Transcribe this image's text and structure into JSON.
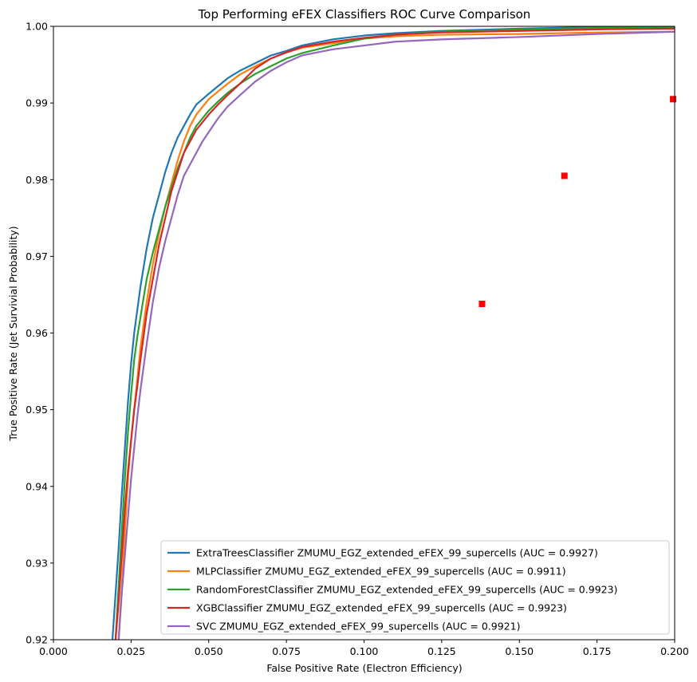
{
  "chart_data": {
    "type": "line",
    "title": "Top Performing eFEX Classifiers ROC Curve Comparison",
    "xlabel": "False Positive Rate (Electron Efficiency)",
    "ylabel": "True Positive Rate (Jet Survivial Probability)",
    "xlim": [
      0.0,
      0.2
    ],
    "ylim": [
      0.92,
      1.0
    ],
    "x_ticks": [
      "0.000",
      "0.025",
      "0.050",
      "0.075",
      "0.100",
      "0.125",
      "0.150",
      "0.175",
      "0.200"
    ],
    "y_ticks": [
      "0.92",
      "0.93",
      "0.94",
      "0.95",
      "0.96",
      "0.97",
      "0.98",
      "0.99",
      "1.00"
    ],
    "grid": false,
    "legend_position": "lower-right",
    "series": [
      {
        "name": "ExtraTreesClassifier ZMUMU_EGZ_extended_eFEX_99_supercells (AUC = 0.9927)",
        "color": "#1f77b4",
        "x": [
          0.019,
          0.02,
          0.021,
          0.022,
          0.023,
          0.024,
          0.025,
          0.026,
          0.027,
          0.028,
          0.03,
          0.032,
          0.034,
          0.036,
          0.038,
          0.04,
          0.042,
          0.044,
          0.046,
          0.048,
          0.05,
          0.053,
          0.056,
          0.06,
          0.065,
          0.07,
          0.075,
          0.08,
          0.09,
          0.1,
          0.11,
          0.125,
          0.15,
          0.175,
          0.2
        ],
        "y": [
          0.92,
          0.926,
          0.932,
          0.939,
          0.945,
          0.951,
          0.956,
          0.96,
          0.963,
          0.966,
          0.971,
          0.975,
          0.978,
          0.981,
          0.9835,
          0.9855,
          0.987,
          0.9885,
          0.9898,
          0.9905,
          0.9912,
          0.9922,
          0.9932,
          0.9942,
          0.9952,
          0.9962,
          0.9968,
          0.9975,
          0.9983,
          0.9988,
          0.9991,
          0.9994,
          0.9997,
          0.9999,
          1.0
        ]
      },
      {
        "name": "MLPClassifier ZMUMU_EGZ_extended_eFEX_99_supercells (AUC = 0.9911)",
        "color": "#ff7f0e",
        "x": [
          0.021,
          0.022,
          0.023,
          0.024,
          0.025,
          0.026,
          0.027,
          0.028,
          0.03,
          0.032,
          0.034,
          0.036,
          0.038,
          0.04,
          0.042,
          0.044,
          0.046,
          0.048,
          0.05,
          0.053,
          0.056,
          0.06,
          0.065,
          0.07,
          0.075,
          0.08,
          0.09,
          0.1,
          0.11,
          0.125,
          0.15,
          0.175,
          0.2
        ],
        "y": [
          0.92,
          0.927,
          0.934,
          0.941,
          0.946,
          0.95,
          0.954,
          0.958,
          0.964,
          0.969,
          0.973,
          0.9765,
          0.9795,
          0.9825,
          0.985,
          0.987,
          0.9885,
          0.9895,
          0.9905,
          0.9915,
          0.9925,
          0.9937,
          0.9948,
          0.9958,
          0.9966,
          0.9972,
          0.9978,
          0.9984,
          0.9987,
          0.9989,
          0.999,
          0.9992,
          0.9993
        ]
      },
      {
        "name": "RandomForestClassifier ZMUMU_EGZ_extended_eFEX_99_supercells (AUC = 0.9923)",
        "color": "#2ca02c",
        "x": [
          0.02,
          0.021,
          0.022,
          0.023,
          0.024,
          0.025,
          0.026,
          0.027,
          0.028,
          0.03,
          0.032,
          0.034,
          0.036,
          0.038,
          0.04,
          0.042,
          0.044,
          0.046,
          0.048,
          0.05,
          0.053,
          0.056,
          0.06,
          0.065,
          0.07,
          0.075,
          0.08,
          0.09,
          0.1,
          0.11,
          0.125,
          0.15,
          0.175,
          0.2
        ],
        "y": [
          0.92,
          0.927,
          0.934,
          0.941,
          0.947,
          0.952,
          0.9565,
          0.9595,
          0.962,
          0.967,
          0.9705,
          0.9735,
          0.9765,
          0.979,
          0.9815,
          0.9835,
          0.9855,
          0.987,
          0.988,
          0.989,
          0.9902,
          0.9913,
          0.9925,
          0.9938,
          0.9948,
          0.9958,
          0.9965,
          0.9975,
          0.9984,
          0.9989,
          0.9993,
          0.9996,
          0.9998,
          0.9999
        ]
      },
      {
        "name": "XGBClassifier ZMUMU_EGZ_extended_eFEX_99_supercells (AUC = 0.9923)",
        "color": "#d62728",
        "x": [
          0.02,
          0.021,
          0.022,
          0.023,
          0.024,
          0.025,
          0.026,
          0.027,
          0.028,
          0.03,
          0.032,
          0.034,
          0.036,
          0.038,
          0.04,
          0.042,
          0.044,
          0.046,
          0.048,
          0.05,
          0.053,
          0.056,
          0.06,
          0.065,
          0.07,
          0.075,
          0.08,
          0.09,
          0.1,
          0.11,
          0.125,
          0.15,
          0.175,
          0.2
        ],
        "y": [
          0.92,
          0.925,
          0.931,
          0.937,
          0.942,
          0.946,
          0.95,
          0.953,
          0.9565,
          0.9625,
          0.967,
          0.9715,
          0.975,
          0.9785,
          0.981,
          0.9835,
          0.985,
          0.9865,
          0.9875,
          0.9885,
          0.9898,
          0.991,
          0.9925,
          0.9945,
          0.9958,
          0.9966,
          0.9973,
          0.998,
          0.9985,
          0.9989,
          0.9992,
          0.9994,
          0.9996,
          0.9997
        ]
      },
      {
        "name": "SVC ZMUMU_EGZ_extended_eFEX_99_supercells (AUC = 0.9921)",
        "color": "#9467bd",
        "x": [
          0.021,
          0.022,
          0.023,
          0.024,
          0.025,
          0.026,
          0.027,
          0.028,
          0.029,
          0.03,
          0.032,
          0.034,
          0.036,
          0.038,
          0.04,
          0.042,
          0.044,
          0.046,
          0.048,
          0.05,
          0.053,
          0.056,
          0.06,
          0.065,
          0.07,
          0.075,
          0.08,
          0.09,
          0.1,
          0.11,
          0.125,
          0.15,
          0.175,
          0.2
        ],
        "y": [
          0.92,
          0.926,
          0.931,
          0.936,
          0.941,
          0.945,
          0.949,
          0.9525,
          0.9555,
          0.9585,
          0.964,
          0.9685,
          0.972,
          0.975,
          0.978,
          0.9805,
          0.982,
          0.9835,
          0.985,
          0.9862,
          0.988,
          0.9895,
          0.991,
          0.9928,
          0.9942,
          0.9953,
          0.9962,
          0.997,
          0.9975,
          0.998,
          0.9983,
          0.9986,
          0.999,
          0.9993
        ]
      }
    ],
    "markers": {
      "color": "#ff0000",
      "shape": "square",
      "points": [
        {
          "x": 0.138,
          "y": 0.9638
        },
        {
          "x": 0.1645,
          "y": 0.9805
        },
        {
          "x": 0.1995,
          "y": 0.9905
        }
      ]
    }
  }
}
